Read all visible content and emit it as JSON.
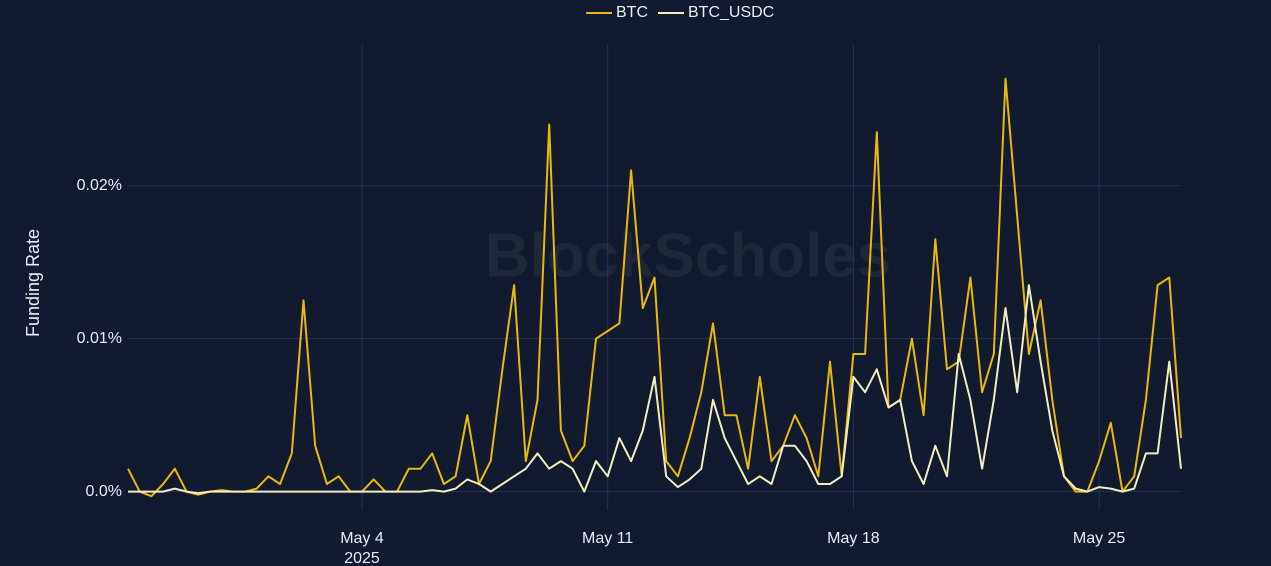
{
  "chart_data": {
    "type": "line",
    "y_label": "Funding Rate",
    "watermark": "BlockScholes",
    "x_year_label": "2025",
    "legend_position": "top",
    "grid": true,
    "x": [
      "2025-04-27T08:00",
      "2025-04-27T16:00",
      "2025-04-28T00:00",
      "2025-04-28T08:00",
      "2025-04-28T16:00",
      "2025-04-29T00:00",
      "2025-04-29T08:00",
      "2025-04-29T16:00",
      "2025-04-30T00:00",
      "2025-04-30T08:00",
      "2025-04-30T16:00",
      "2025-05-01T00:00",
      "2025-05-01T08:00",
      "2025-05-01T16:00",
      "2025-05-02T00:00",
      "2025-05-02T08:00",
      "2025-05-02T16:00",
      "2025-05-03T00:00",
      "2025-05-03T08:00",
      "2025-05-03T16:00",
      "2025-05-04T00:00",
      "2025-05-04T08:00",
      "2025-05-04T16:00",
      "2025-05-05T00:00",
      "2025-05-05T08:00",
      "2025-05-05T16:00",
      "2025-05-06T00:00",
      "2025-05-06T08:00",
      "2025-05-06T16:00",
      "2025-05-07T00:00",
      "2025-05-07T08:00",
      "2025-05-07T16:00",
      "2025-05-08T00:00",
      "2025-05-08T08:00",
      "2025-05-08T16:00",
      "2025-05-09T00:00",
      "2025-05-09T08:00",
      "2025-05-09T16:00",
      "2025-05-10T00:00",
      "2025-05-10T08:00",
      "2025-05-10T16:00",
      "2025-05-11T00:00",
      "2025-05-11T08:00",
      "2025-05-11T16:00",
      "2025-05-12T00:00",
      "2025-05-12T08:00",
      "2025-05-12T16:00",
      "2025-05-13T00:00",
      "2025-05-13T08:00",
      "2025-05-13T16:00",
      "2025-05-14T00:00",
      "2025-05-14T08:00",
      "2025-05-14T16:00",
      "2025-05-15T00:00",
      "2025-05-15T08:00",
      "2025-05-15T16:00",
      "2025-05-16T00:00",
      "2025-05-16T08:00",
      "2025-05-16T16:00",
      "2025-05-17T00:00",
      "2025-05-17T08:00",
      "2025-05-17T16:00",
      "2025-05-18T00:00",
      "2025-05-18T08:00",
      "2025-05-18T16:00",
      "2025-05-19T00:00",
      "2025-05-19T08:00",
      "2025-05-19T16:00",
      "2025-05-20T00:00",
      "2025-05-20T08:00",
      "2025-05-20T16:00",
      "2025-05-21T00:00",
      "2025-05-21T08:00",
      "2025-05-21T16:00",
      "2025-05-22T00:00",
      "2025-05-22T08:00",
      "2025-05-22T16:00",
      "2025-05-23T00:00",
      "2025-05-23T08:00",
      "2025-05-23T16:00",
      "2025-05-24T00:00",
      "2025-05-24T08:00",
      "2025-05-24T16:00",
      "2025-05-25T00:00",
      "2025-05-25T08:00",
      "2025-05-25T16:00",
      "2025-05-26T00:00",
      "2025-05-26T08:00",
      "2025-05-26T16:00",
      "2025-05-27T00:00",
      "2025-05-27T08:00"
    ],
    "series": [
      {
        "name": "BTC",
        "color": "#e8b810",
        "values": [
          0.0015,
          0,
          -0.0003,
          0.0005,
          0.0015,
          0,
          -0.0002,
          0,
          0.0001,
          0,
          0,
          0.0002,
          0.001,
          0.0005,
          0.0025,
          0.0125,
          0.003,
          0.0005,
          0.001,
          0,
          0,
          0.0008,
          0,
          0,
          0.0015,
          0.0015,
          0.0025,
          0.0005,
          0.001,
          0.005,
          0.0005,
          0.002,
          0.008,
          0.0135,
          0.002,
          0.006,
          0.024,
          0.004,
          0.002,
          0.003,
          0.01,
          0.0105,
          0.011,
          0.021,
          0.012,
          0.014,
          0.002,
          0.001,
          0.0035,
          0.0065,
          0.011,
          0.005,
          0.005,
          0.0015,
          0.0075,
          0.002,
          0.003,
          0.005,
          0.0035,
          0.001,
          0.0085,
          0.001,
          0.009,
          0.009,
          0.0235,
          0.0055,
          0.006,
          0.01,
          0.005,
          0.0165,
          0.008,
          0.0085,
          0.014,
          0.0065,
          0.009,
          0.027,
          0.018,
          0.009,
          0.0125,
          0.006,
          0.001,
          0,
          0,
          0.002,
          0.0045,
          0,
          0.001,
          0.006,
          0.0135,
          0.014,
          0.0035
        ]
      },
      {
        "name": "BTC_USDC",
        "color": "#f2edc0",
        "values": [
          0,
          0,
          0,
          0,
          0.0002,
          0,
          -0.0001,
          0,
          0,
          0,
          0,
          0,
          0,
          0,
          0,
          0,
          0,
          0,
          0,
          0,
          0,
          0,
          0,
          0,
          0,
          0,
          0.0001,
          0,
          0.0002,
          0.0008,
          0.0005,
          0,
          0.0005,
          0.001,
          0.0015,
          0.0025,
          0.0015,
          0.002,
          0.0015,
          0,
          0.002,
          0.001,
          0.0035,
          0.002,
          0.004,
          0.0075,
          0.001,
          0.0003,
          0.0008,
          0.0015,
          0.006,
          0.0035,
          0.002,
          0.0005,
          0.001,
          0.0005,
          0.003,
          0.003,
          0.002,
          0.0005,
          0.0005,
          0.001,
          0.0075,
          0.0065,
          0.008,
          0.0055,
          0.006,
          0.002,
          0.0005,
          0.003,
          0.001,
          0.009,
          0.006,
          0.0015,
          0.006,
          0.012,
          0.0065,
          0.0135,
          0.0085,
          0.004,
          0.001,
          0.0002,
          0,
          0.0003,
          0.0002,
          0,
          0.0002,
          0.0025,
          0.0025,
          0.0085,
          0.0015
        ]
      }
    ],
    "xlim": [
      "2025-04-27T08:00",
      "2025-05-27T08:00"
    ],
    "xticks": [
      {
        "value": "2025-05-04T00:00",
        "label": "May 4"
      },
      {
        "value": "2025-05-11T00:00",
        "label": "May 11"
      },
      {
        "value": "2025-05-18T00:00",
        "label": "May 18"
      },
      {
        "value": "2025-05-25T00:00",
        "label": "May 25"
      }
    ],
    "ylim": [
      -0.0012,
      0.0292
    ],
    "yticks": [
      {
        "value": 0,
        "label": "0.0%"
      },
      {
        "value": 0.01,
        "label": "0.01%"
      },
      {
        "value": 0.02,
        "label": "0.02%"
      }
    ]
  }
}
